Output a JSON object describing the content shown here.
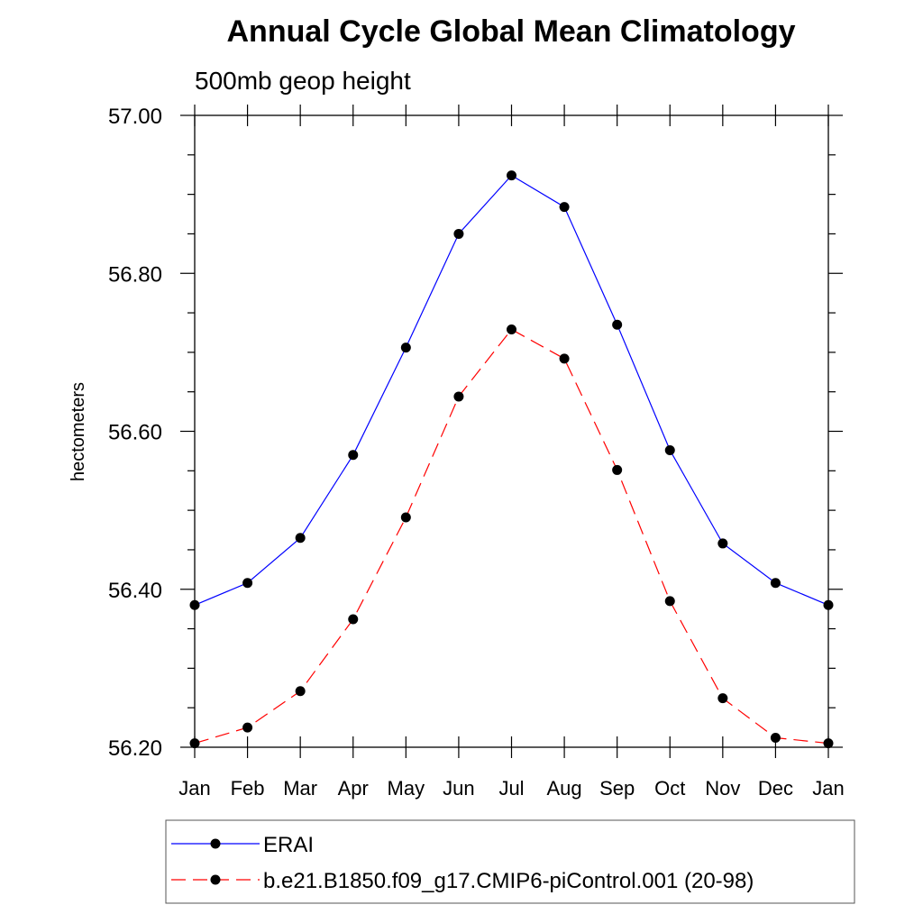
{
  "chart_data": {
    "type": "line",
    "title": "Annual Cycle Global Mean Climatology",
    "subtitle": "500mb geop height",
    "xlabel": "",
    "ylabel": "hectometers",
    "categories": [
      "Jan",
      "Feb",
      "Mar",
      "Apr",
      "May",
      "Jun",
      "Jul",
      "Aug",
      "Sep",
      "Oct",
      "Nov",
      "Dec",
      "Jan"
    ],
    "ylim": [
      56.2,
      57.0
    ],
    "yticks": [
      "56.20",
      "56.40",
      "56.60",
      "56.80",
      "57.00"
    ],
    "grid": false,
    "legend_position": "bottom",
    "series": [
      {
        "name": "ERAI",
        "color": "#0000ff",
        "dash": "solid",
        "marker": "filled-circle",
        "values": [
          56.38,
          56.408,
          56.465,
          56.57,
          56.706,
          56.85,
          56.924,
          56.884,
          56.735,
          56.576,
          56.458,
          56.408,
          56.38
        ]
      },
      {
        "name": "b.e21.B1850.f09_g17.CMIP6-piControl.001 (20-98)",
        "color": "#ff0000",
        "dash": "dashed",
        "marker": "filled-circle",
        "values": [
          56.205,
          56.225,
          56.271,
          56.362,
          56.491,
          56.644,
          56.729,
          56.692,
          56.551,
          56.385,
          56.262,
          56.212,
          56.205
        ]
      }
    ]
  }
}
